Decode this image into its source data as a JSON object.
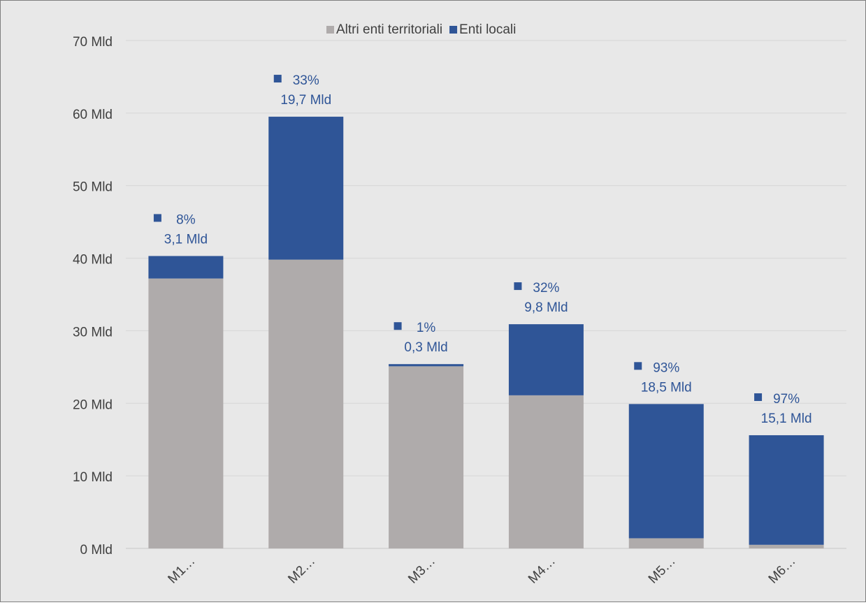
{
  "chart_data": {
    "type": "bar",
    "stacked": true,
    "categories": [
      "M1…",
      "M2…",
      "M3…",
      "M4…",
      "M5…",
      "M6…"
    ],
    "series": [
      {
        "name": "Altri enti territoriali",
        "color": "#afabab",
        "values": [
          37.2,
          39.8,
          25.1,
          21.1,
          1.4,
          0.5
        ]
      },
      {
        "name": "Enti locali",
        "color": "#2f5597",
        "values": [
          3.1,
          19.7,
          0.3,
          9.8,
          18.5,
          15.1
        ]
      }
    ],
    "data_labels": [
      {
        "percent": "8%",
        "amount": "3,1 Mld"
      },
      {
        "percent": "33%",
        "amount": "19,7 Mld"
      },
      {
        "percent": "1%",
        "amount": "0,3 Mld"
      },
      {
        "percent": "32%",
        "amount": "9,8 Mld"
      },
      {
        "percent": "93%",
        "amount": "18,5 Mld"
      },
      {
        "percent": "97%",
        "amount": "15,1 Mld"
      }
    ],
    "y_ticks": [
      "0 Mld",
      "10 Mld",
      "20 Mld",
      "30 Mld",
      "40 Mld",
      "50 Mld",
      "60 Mld",
      "70 Mld"
    ],
    "ylim": [
      0,
      70
    ],
    "grid": true,
    "legend_position": "top",
    "title": "",
    "xlabel": "",
    "ylabel": ""
  }
}
